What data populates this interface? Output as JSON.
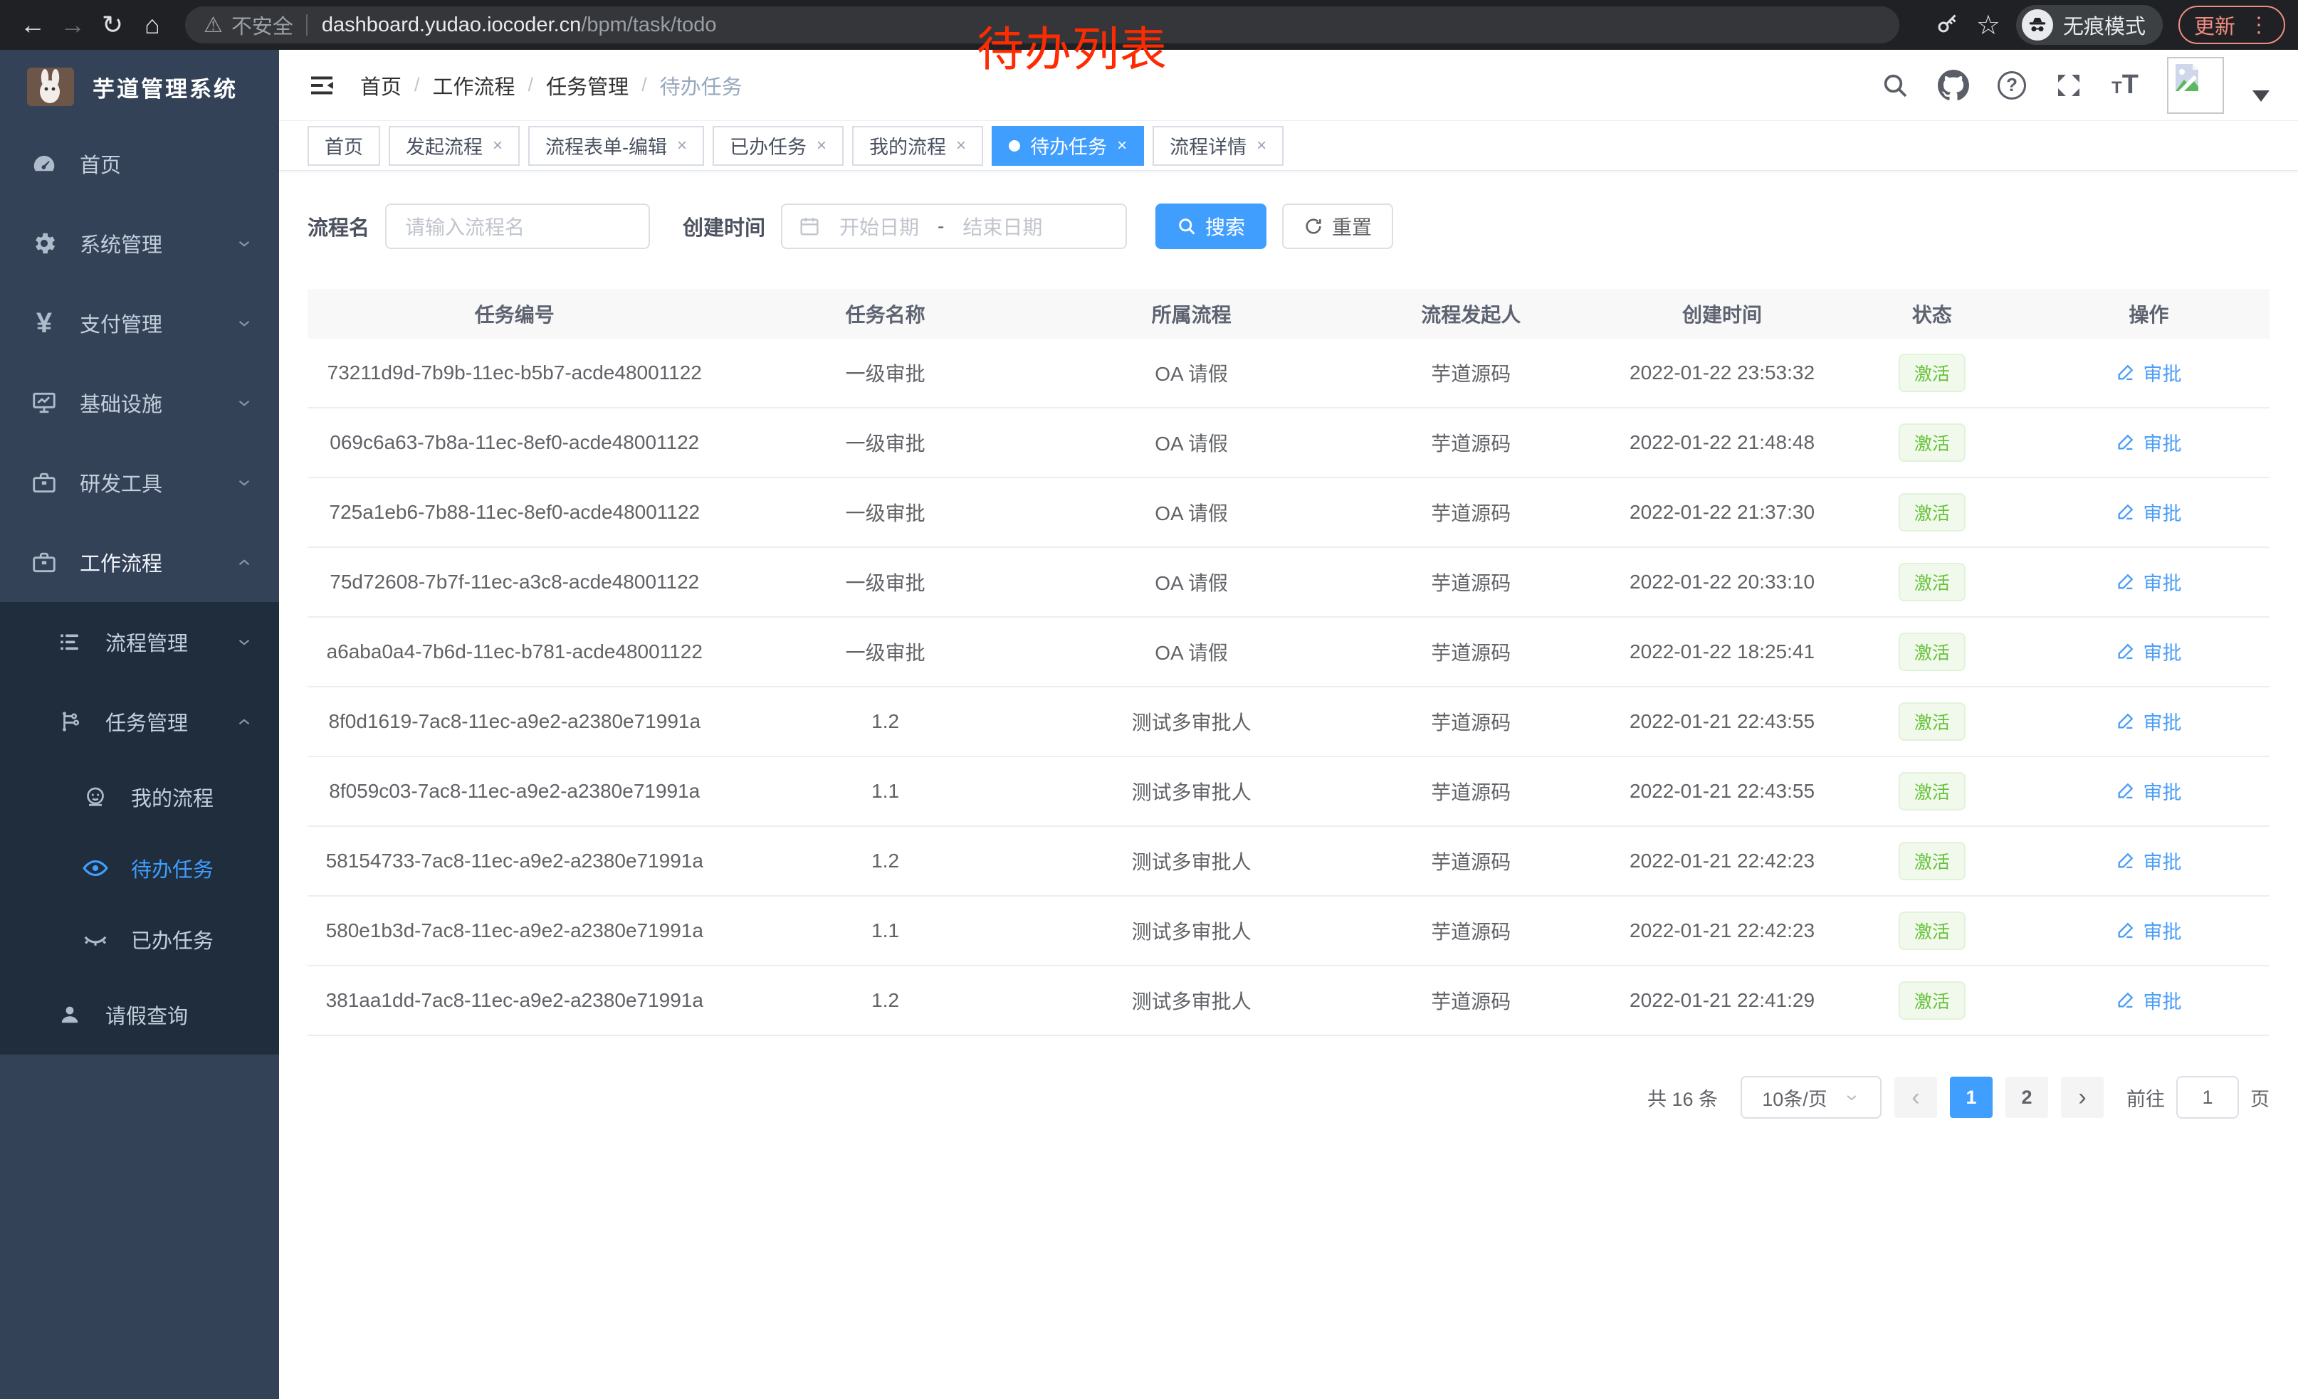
{
  "browser": {
    "security_label": "不安全",
    "url_host": "dashboard.yudao.iocoder.cn",
    "url_path": "/bpm/task/todo",
    "incognito_label": "无痕模式",
    "update_label": "更新"
  },
  "icons": {
    "back": "←",
    "forward": "→",
    "reload": "↻",
    "home": "⌂",
    "warning": "⚠",
    "star": "☆",
    "menu_dots": "⋮",
    "range_separator": "-",
    "question": "?",
    "font_small": "T",
    "font_big": "T"
  },
  "overlay": {
    "title": "待办列表",
    "color": "#fe2b00"
  },
  "sidebar": {
    "app_title": "芋道管理系统",
    "items": [
      {
        "label": "首页"
      },
      {
        "label": "系统管理"
      },
      {
        "label": "支付管理"
      },
      {
        "label": "基础设施"
      },
      {
        "label": "研发工具"
      },
      {
        "label": "工作流程"
      }
    ],
    "workflow_children": [
      {
        "label": "流程管理"
      },
      {
        "label": "任务管理"
      }
    ],
    "task_children": [
      {
        "label": "我的流程"
      },
      {
        "label": "待办任务"
      },
      {
        "label": "已办任务"
      }
    ],
    "leave_query_label": "请假查询"
  },
  "breadcrumb": [
    "首页",
    "工作流程",
    "任务管理",
    "待办任务"
  ],
  "tabs": [
    {
      "label": "首页"
    },
    {
      "label": "发起流程"
    },
    {
      "label": "流程表单-编辑"
    },
    {
      "label": "已办任务"
    },
    {
      "label": "我的流程"
    },
    {
      "label": "待办任务"
    },
    {
      "label": "流程详情"
    }
  ],
  "filters": {
    "name_label": "流程名",
    "name_placeholder": "请输入流程名",
    "time_label": "创建时间",
    "start_placeholder": "开始日期",
    "end_placeholder": "结束日期",
    "search_label": "搜索",
    "reset_label": "重置"
  },
  "table": {
    "columns": [
      "任务编号",
      "任务名称",
      "所属流程",
      "流程发起人",
      "创建时间",
      "状态",
      "操作"
    ],
    "rows": [
      {
        "id": "73211d9d-7b9b-11ec-b5b7-acde48001122",
        "name": "一级审批",
        "process": "OA 请假",
        "starter": "芋道源码",
        "time": "2022-01-22 23:53:32",
        "status": "激活",
        "action": "审批"
      },
      {
        "id": "069c6a63-7b8a-11ec-8ef0-acde48001122",
        "name": "一级审批",
        "process": "OA 请假",
        "starter": "芋道源码",
        "time": "2022-01-22 21:48:48",
        "status": "激活",
        "action": "审批"
      },
      {
        "id": "725a1eb6-7b88-11ec-8ef0-acde48001122",
        "name": "一级审批",
        "process": "OA 请假",
        "starter": "芋道源码",
        "time": "2022-01-22 21:37:30",
        "status": "激活",
        "action": "审批"
      },
      {
        "id": "75d72608-7b7f-11ec-a3c8-acde48001122",
        "name": "一级审批",
        "process": "OA 请假",
        "starter": "芋道源码",
        "time": "2022-01-22 20:33:10",
        "status": "激活",
        "action": "审批"
      },
      {
        "id": "a6aba0a4-7b6d-11ec-b781-acde48001122",
        "name": "一级审批",
        "process": "OA 请假",
        "starter": "芋道源码",
        "time": "2022-01-22 18:25:41",
        "status": "激活",
        "action": "审批"
      },
      {
        "id": "8f0d1619-7ac8-11ec-a9e2-a2380e71991a",
        "name": "1.2",
        "process": "测试多审批人",
        "starter": "芋道源码",
        "time": "2022-01-21 22:43:55",
        "status": "激活",
        "action": "审批"
      },
      {
        "id": "8f059c03-7ac8-11ec-a9e2-a2380e71991a",
        "name": "1.1",
        "process": "测试多审批人",
        "starter": "芋道源码",
        "time": "2022-01-21 22:43:55",
        "status": "激活",
        "action": "审批"
      },
      {
        "id": "58154733-7ac8-11ec-a9e2-a2380e71991a",
        "name": "1.2",
        "process": "测试多审批人",
        "starter": "芋道源码",
        "time": "2022-01-21 22:42:23",
        "status": "激活",
        "action": "审批"
      },
      {
        "id": "580e1b3d-7ac8-11ec-a9e2-a2380e71991a",
        "name": "1.1",
        "process": "测试多审批人",
        "starter": "芋道源码",
        "time": "2022-01-21 22:42:23",
        "status": "激活",
        "action": "审批"
      },
      {
        "id": "381aa1dd-7ac8-11ec-a9e2-a2380e71991a",
        "name": "1.2",
        "process": "测试多审批人",
        "starter": "芋道源码",
        "time": "2022-01-21 22:41:29",
        "status": "激活",
        "action": "审批"
      }
    ]
  },
  "pagination": {
    "total": "共 16 条",
    "page_size": "10条/页",
    "prev": "‹",
    "next": "›",
    "page1": "1",
    "page2": "2",
    "goto_label": "前往",
    "goto_value": "1",
    "unit_label": "页"
  },
  "colors": {
    "accent": "#409eff",
    "status_green": "#67c23a",
    "sidebar_bg": "#344258",
    "submenu_bg": "#1f2d3d"
  }
}
